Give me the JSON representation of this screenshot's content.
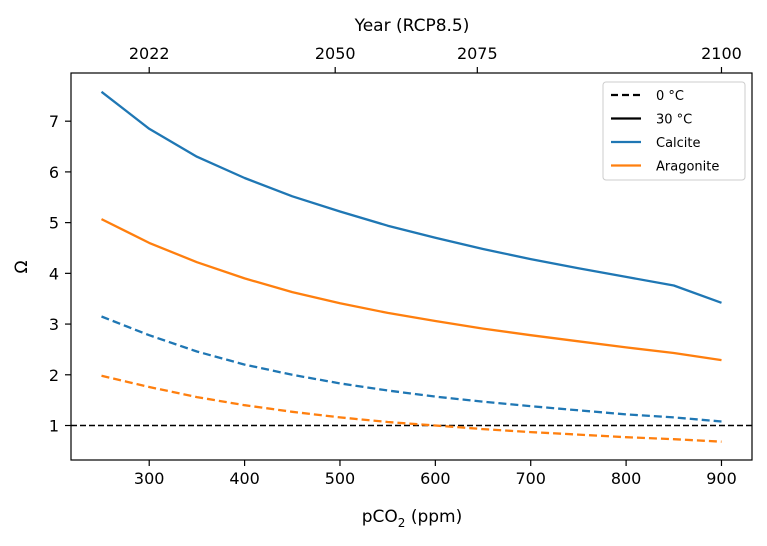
{
  "chart_data": {
    "type": "line",
    "xlabel_main": "pCO",
    "xlabel_sub": "2",
    "xlabel_tail": " (ppm)",
    "ylabel": "Ω",
    "top_axis_label": "Year (RCP8.5)",
    "top_ticks": [
      {
        "x": 300,
        "label": "2022"
      },
      {
        "x": 495,
        "label": "2050"
      },
      {
        "x": 644,
        "label": "2075"
      },
      {
        "x": 900,
        "label": "2100"
      }
    ],
    "xlim": [
      218,
      932
    ],
    "ylim": [
      0.32,
      7.95
    ],
    "xticks": [
      300,
      400,
      500,
      600,
      700,
      800,
      900
    ],
    "yticks": [
      1,
      2,
      3,
      4,
      5,
      6,
      7
    ],
    "reference_line": {
      "y": 1,
      "style": "dashed",
      "color": "#000000"
    },
    "legend": {
      "position": "top-right",
      "entries": [
        {
          "label": "0 °C",
          "color": "#000000",
          "style": "dashed"
        },
        {
          "label": "30 °C",
          "color": "#000000",
          "style": "solid"
        },
        {
          "label": "Calcite",
          "color": "#1f77b4",
          "style": "solid"
        },
        {
          "label": "Aragonite",
          "color": "#ff7f0e",
          "style": "solid"
        }
      ]
    },
    "series": [
      {
        "mineral": "Calcite",
        "temperature": "30 °C",
        "color": "#1f77b4",
        "style": "solid",
        "x": [
          250,
          300,
          350,
          400,
          450,
          500,
          550,
          600,
          650,
          700,
          750,
          800,
          850,
          900
        ],
        "y": [
          7.58,
          6.85,
          6.3,
          5.88,
          5.52,
          5.22,
          4.94,
          4.7,
          4.48,
          4.28,
          4.1,
          3.93,
          3.76,
          3.42
        ]
      },
      {
        "mineral": "Aragonite",
        "temperature": "30 °C",
        "color": "#ff7f0e",
        "style": "solid",
        "x": [
          250,
          300,
          350,
          400,
          450,
          500,
          550,
          600,
          650,
          700,
          750,
          800,
          850,
          900
        ],
        "y": [
          5.07,
          4.6,
          4.22,
          3.9,
          3.63,
          3.41,
          3.22,
          3.06,
          2.91,
          2.78,
          2.66,
          2.54,
          2.43,
          2.29
        ]
      },
      {
        "mineral": "Calcite",
        "temperature": "0 °C",
        "color": "#1f77b4",
        "style": "dashed",
        "x": [
          250,
          300,
          350,
          400,
          450,
          500,
          550,
          600,
          650,
          700,
          750,
          800,
          850,
          900
        ],
        "y": [
          3.15,
          2.78,
          2.46,
          2.2,
          2.0,
          1.83,
          1.69,
          1.57,
          1.47,
          1.38,
          1.3,
          1.22,
          1.16,
          1.08
        ]
      },
      {
        "mineral": "Aragonite",
        "temperature": "0 °C",
        "color": "#ff7f0e",
        "style": "dashed",
        "x": [
          250,
          300,
          350,
          400,
          450,
          500,
          550,
          600,
          650,
          700,
          750,
          800,
          850,
          900
        ],
        "y": [
          1.98,
          1.76,
          1.56,
          1.4,
          1.27,
          1.16,
          1.07,
          1.0,
          0.93,
          0.87,
          0.82,
          0.77,
          0.73,
          0.68
        ]
      }
    ]
  }
}
